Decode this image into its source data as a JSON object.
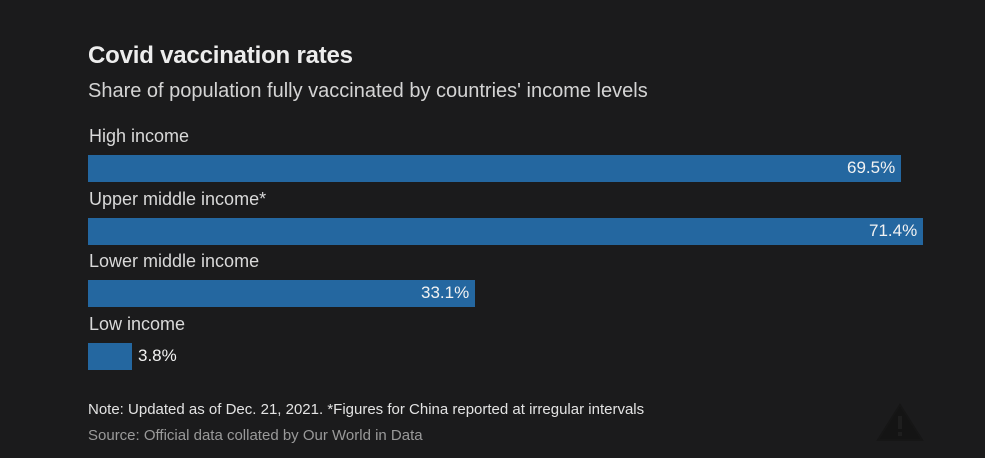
{
  "chart_data": {
    "type": "bar",
    "orientation": "horizontal",
    "title": "Covid vaccination rates",
    "subtitle": "Share of population fully vaccinated by countries' income levels",
    "categories": [
      "High income",
      "Upper middle income*",
      "Lower middle income",
      "Low income"
    ],
    "values": [
      69.5,
      71.4,
      33.1,
      3.8
    ],
    "value_labels": [
      "69.5%",
      "71.4%",
      "33.1%",
      "3.8%"
    ],
    "unit": "%",
    "xlim": [
      0,
      72.7
    ],
    "grid": false,
    "legend": "none",
    "bar_color": "#2467a0",
    "note": "Note: Updated as of Dec. 21, 2021. *Figures for China reported at irregular intervals",
    "source": "Source: Official data collated by Our World in Data"
  },
  "icons": {
    "watermark": "warning-triangle-icon"
  },
  "colors": {
    "background": "#1b1b1c",
    "bar": "#2467a0"
  }
}
